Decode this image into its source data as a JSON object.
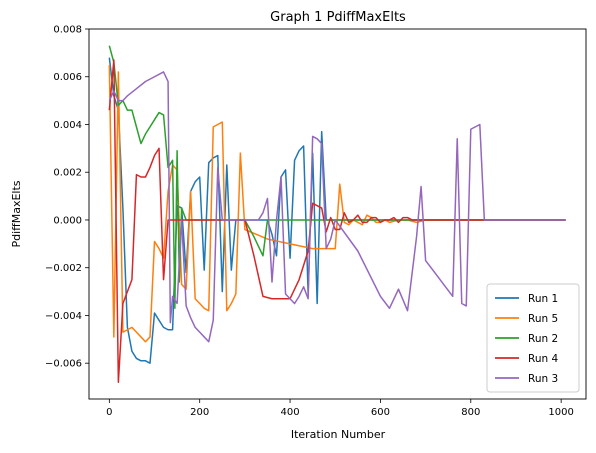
{
  "chart_data": {
    "type": "line",
    "title": "Graph 1 PdiffMaxElts",
    "xlabel": "Iteration Number",
    "ylabel": "PdiffMaxElts",
    "xlim": [
      -45,
      1055
    ],
    "ylim": [
      -0.0075,
      0.008
    ],
    "xticks": [
      0,
      200,
      400,
      600,
      800,
      1000
    ],
    "yticks": [
      -0.006,
      -0.004,
      -0.002,
      0.0,
      0.002,
      0.004,
      0.006,
      0.008
    ],
    "xtick_labels": [
      "0",
      "200",
      "400",
      "600",
      "800",
      "1000"
    ],
    "ytick_labels": [
      "−0.006",
      "−0.004",
      "−0.002",
      "0.000",
      "0.002",
      "0.004",
      "0.006",
      "0.008"
    ],
    "grid": false,
    "legend_position": "lower-right",
    "series": [
      {
        "name": "Run 1",
        "color": "#1f77b4",
        "x": [
          0,
          10,
          20,
          30,
          40,
          50,
          60,
          70,
          80,
          90,
          100,
          110,
          120,
          130,
          140,
          150,
          160,
          170,
          180,
          190,
          200,
          210,
          220,
          230,
          240,
          250,
          260,
          270,
          280,
          290,
          300,
          310,
          320,
          330,
          340,
          350,
          360,
          370,
          380,
          390,
          400,
          410,
          420,
          430,
          440,
          450,
          460,
          470,
          480,
          490,
          500,
          1010
        ],
        "y": [
          0.0068,
          0.0052,
          0.0046,
          0.0005,
          -0.0045,
          -0.0055,
          -0.0058,
          -0.0059,
          -0.0059,
          -0.006,
          -0.0039,
          -0.0042,
          -0.0045,
          -0.0046,
          -0.0046,
          0.0006,
          0.0005,
          -0.0022,
          0.0012,
          0.0016,
          0.0018,
          -0.0021,
          0.0024,
          0.0026,
          0.0027,
          -0.003,
          0.0023,
          -0.0021,
          0.0,
          0.0,
          0.0,
          0.0,
          0.0,
          0.0,
          0.0,
          0.0,
          -0.0006,
          -0.0015,
          0.0018,
          0.0021,
          -0.0016,
          0.0025,
          0.0029,
          0.0031,
          -0.0031,
          0.0028,
          -0.0035,
          0.0037,
          0.0,
          0.0,
          0.0,
          0.0
        ]
      },
      {
        "name": "Run 5",
        "color": "#ff7f0e",
        "x": [
          0,
          10,
          20,
          30,
          40,
          50,
          60,
          70,
          80,
          90,
          100,
          110,
          120,
          130,
          140,
          150,
          160,
          170,
          180,
          190,
          200,
          210,
          220,
          230,
          240,
          250,
          260,
          270,
          280,
          290,
          300,
          350,
          400,
          450,
          500,
          510,
          520,
          530,
          540,
          550,
          560,
          570,
          580,
          590,
          600,
          610,
          620,
          640,
          660,
          680,
          700,
          1010
        ],
        "y": [
          0.0065,
          -0.0049,
          0.0062,
          -0.0047,
          -0.0046,
          -0.0045,
          -0.0047,
          -0.0049,
          -0.0051,
          -0.0049,
          -0.0009,
          -0.0012,
          -0.0016,
          0.0012,
          0.0023,
          0.0021,
          -0.0027,
          -0.0029,
          0.0012,
          -0.0033,
          -0.0035,
          -0.0037,
          -0.0038,
          0.0039,
          0.004,
          0.0041,
          -0.0038,
          -0.0035,
          -0.0031,
          0.0028,
          -0.0004,
          -0.0008,
          -0.001,
          -0.0012,
          -0.0012,
          0.0015,
          -0.0001,
          -0.0002,
          0.0,
          -0.0001,
          -0.0002,
          0.0002,
          0.0001,
          -0.0001,
          -0.0001,
          0.0,
          -0.0001,
          0.0,
          0.0,
          -0.0001,
          0.0,
          0.0
        ]
      },
      {
        "name": "Run 2",
        "color": "#2ca02c",
        "x": [
          0,
          10,
          20,
          30,
          40,
          50,
          60,
          70,
          80,
          90,
          100,
          110,
          120,
          130,
          140,
          145,
          150,
          155,
          160,
          170,
          180,
          190,
          200,
          250,
          300,
          320,
          340,
          350,
          400,
          450,
          500,
          1010
        ],
        "y": [
          0.0073,
          0.0066,
          0.0048,
          0.005,
          0.0046,
          0.0046,
          0.0039,
          0.0032,
          0.0036,
          0.0039,
          0.0042,
          0.0045,
          0.0044,
          0.0022,
          0.0025,
          -0.0037,
          0.0029,
          -0.0026,
          0.0005,
          0.0,
          0.0,
          0.0,
          0.0,
          0.0,
          0.0,
          -0.0007,
          -0.0015,
          0.0,
          0.0,
          0.0,
          0.0,
          0.0
        ]
      },
      {
        "name": "Run 4",
        "color": "#d62728",
        "x": [
          0,
          10,
          20,
          30,
          40,
          50,
          60,
          70,
          80,
          90,
          100,
          110,
          120,
          130,
          140,
          150,
          200,
          250,
          300,
          320,
          340,
          360,
          380,
          400,
          420,
          440,
          450,
          460,
          470,
          480,
          490,
          500,
          510,
          520,
          530,
          540,
          550,
          560,
          570,
          580,
          590,
          600,
          610,
          620,
          630,
          640,
          650,
          660,
          670,
          680,
          690,
          700,
          1010
        ],
        "y": [
          0.0046,
          0.0067,
          -0.0068,
          -0.0035,
          -0.003,
          -0.0025,
          0.0019,
          0.0018,
          0.0018,
          0.0022,
          0.0027,
          0.003,
          -0.0025,
          0.0,
          0.0,
          0.0,
          0.0,
          0.0,
          0.0,
          -0.0015,
          -0.0032,
          -0.0033,
          -0.0033,
          -0.0033,
          -0.0025,
          -0.0013,
          0.0007,
          0.0006,
          0.0005,
          -0.0005,
          0.0001,
          -0.0004,
          -0.0004,
          0.0003,
          -0.0001,
          0.0,
          0.0002,
          -0.0001,
          -0.0001,
          0.0001,
          0.0001,
          -0.0001,
          0.0,
          0.0,
          0.0001,
          -0.0001,
          0.0001,
          0.0001,
          0.0,
          0.0,
          0.0,
          0.0,
          0.0
        ]
      },
      {
        "name": "Run 3",
        "color": "#9467bd",
        "x": [
          0,
          10,
          20,
          30,
          40,
          60,
          80,
          100,
          120,
          130,
          135,
          140,
          150,
          160,
          170,
          180,
          190,
          200,
          210,
          220,
          230,
          240,
          250,
          300,
          330,
          340,
          350,
          360,
          370,
          380,
          390,
          400,
          410,
          420,
          430,
          440,
          450,
          460,
          470,
          480,
          490,
          500,
          550,
          600,
          620,
          640,
          660,
          680,
          690,
          700,
          720,
          740,
          760,
          770,
          780,
          790,
          800,
          810,
          820,
          830,
          840,
          850,
          1010
        ],
        "y": [
          0.005,
          0.0054,
          0.005,
          0.005,
          0.0052,
          0.0055,
          0.0058,
          0.006,
          0.0062,
          0.0058,
          -0.0043,
          -0.0032,
          -0.0035,
          0.0,
          -0.0036,
          -0.0041,
          -0.0045,
          -0.0047,
          -0.0049,
          -0.0051,
          -0.0042,
          0.0022,
          0.0,
          0.0,
          0.0,
          0.0003,
          0.0009,
          -0.0026,
          0.0,
          0.0018,
          -0.0031,
          -0.0033,
          -0.0035,
          -0.0032,
          -0.0028,
          -0.0033,
          0.0035,
          0.0034,
          0.0032,
          -0.0012,
          -0.0008,
          0.0,
          -0.0013,
          -0.0032,
          -0.0037,
          -0.0029,
          -0.0038,
          -0.0007,
          0.0014,
          -0.0017,
          -0.0022,
          -0.0027,
          -0.0032,
          0.0034,
          -0.0035,
          -0.0036,
          0.0038,
          0.0039,
          0.004,
          0.0,
          0.0,
          0.0,
          0.0
        ]
      }
    ]
  }
}
